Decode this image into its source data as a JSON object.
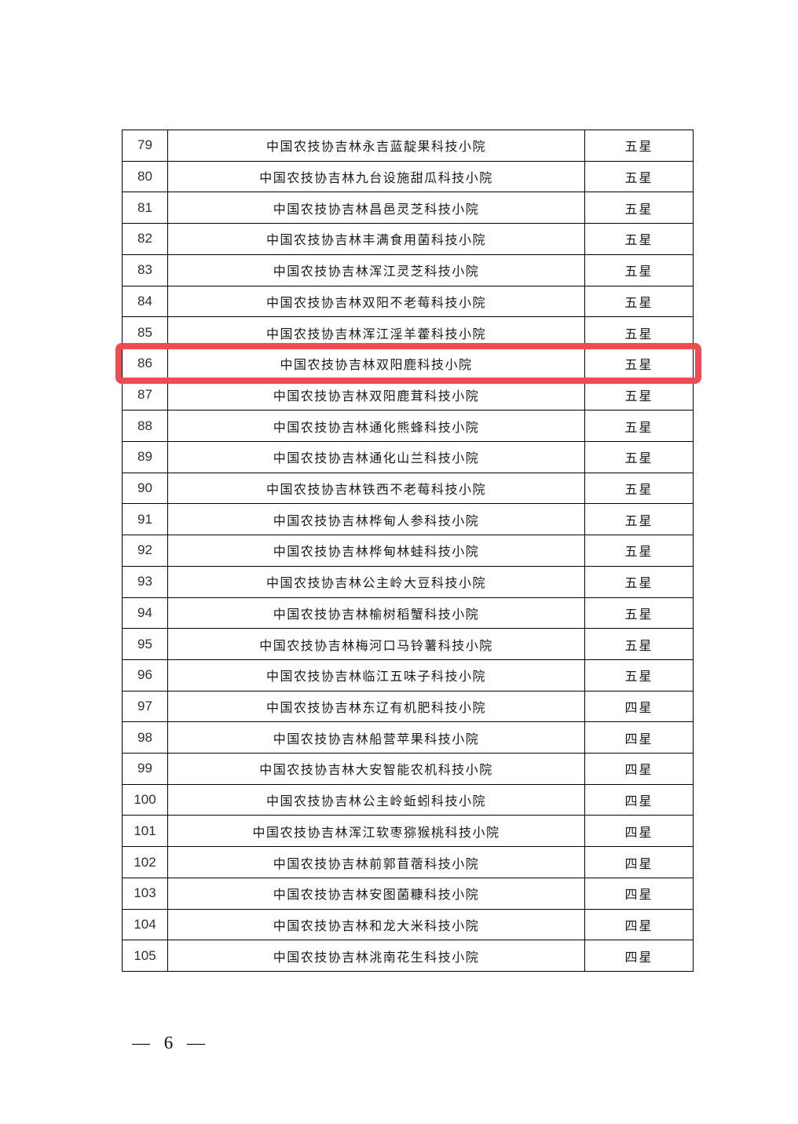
{
  "table": {
    "rows": [
      {
        "no": "79",
        "name": "中国农技协吉林永吉蓝靛果科技小院",
        "rating": "五星",
        "highlighted": false
      },
      {
        "no": "80",
        "name": "中国农技协吉林九台设施甜瓜科技小院",
        "rating": "五星",
        "highlighted": false
      },
      {
        "no": "81",
        "name": "中国农技协吉林昌邑灵芝科技小院",
        "rating": "五星",
        "highlighted": false
      },
      {
        "no": "82",
        "name": "中国农技协吉林丰满食用菌科技小院",
        "rating": "五星",
        "highlighted": false
      },
      {
        "no": "83",
        "name": "中国农技协吉林浑江灵芝科技小院",
        "rating": "五星",
        "highlighted": false
      },
      {
        "no": "84",
        "name": "中国农技协吉林双阳不老莓科技小院",
        "rating": "五星",
        "highlighted": false
      },
      {
        "no": "85",
        "name": "中国农技协吉林浑江淫羊藿科技小院",
        "rating": "五星",
        "highlighted": false
      },
      {
        "no": "86",
        "name": "中国农技协吉林双阳鹿科技小院",
        "rating": "五星",
        "highlighted": true
      },
      {
        "no": "87",
        "name": "中国农技协吉林双阳鹿茸科技小院",
        "rating": "五星",
        "highlighted": false
      },
      {
        "no": "88",
        "name": "中国农技协吉林通化熊蜂科技小院",
        "rating": "五星",
        "highlighted": false
      },
      {
        "no": "89",
        "name": "中国农技协吉林通化山兰科技小院",
        "rating": "五星",
        "highlighted": false
      },
      {
        "no": "90",
        "name": "中国农技协吉林铁西不老莓科技小院",
        "rating": "五星",
        "highlighted": false
      },
      {
        "no": "91",
        "name": "中国农技协吉林桦甸人参科技小院",
        "rating": "五星",
        "highlighted": false
      },
      {
        "no": "92",
        "name": "中国农技协吉林桦甸林蛙科技小院",
        "rating": "五星",
        "highlighted": false
      },
      {
        "no": "93",
        "name": "中国农技协吉林公主岭大豆科技小院",
        "rating": "五星",
        "highlighted": false
      },
      {
        "no": "94",
        "name": "中国农技协吉林榆树稻蟹科技小院",
        "rating": "五星",
        "highlighted": false
      },
      {
        "no": "95",
        "name": "中国农技协吉林梅河口马铃薯科技小院",
        "rating": "五星",
        "highlighted": false
      },
      {
        "no": "96",
        "name": "中国农技协吉林临江五味子科技小院",
        "rating": "五星",
        "highlighted": false
      },
      {
        "no": "97",
        "name": "中国农技协吉林东辽有机肥科技小院",
        "rating": "四星",
        "highlighted": false
      },
      {
        "no": "98",
        "name": "中国农技协吉林船营苹果科技小院",
        "rating": "四星",
        "highlighted": false
      },
      {
        "no": "99",
        "name": "中国农技协吉林大安智能农机科技小院",
        "rating": "四星",
        "highlighted": false
      },
      {
        "no": "100",
        "name": "中国农技协吉林公主岭蚯蚓科技小院",
        "rating": "四星",
        "highlighted": false
      },
      {
        "no": "101",
        "name": "中国农技协吉林浑江软枣猕猴桃科技小院",
        "rating": "四星",
        "highlighted": false
      },
      {
        "no": "102",
        "name": "中国农技协吉林前郭苜蓿科技小院",
        "rating": "四星",
        "highlighted": false
      },
      {
        "no": "103",
        "name": "中国农技协吉林安图菌糠科技小院",
        "rating": "四星",
        "highlighted": false
      },
      {
        "no": "104",
        "name": "中国农技协吉林和龙大米科技小院",
        "rating": "四星",
        "highlighted": false
      },
      {
        "no": "105",
        "name": "中国农技协吉林洮南花生科技小院",
        "rating": "四星",
        "highlighted": false
      }
    ]
  },
  "highlight": {
    "color": "#ee4c50"
  },
  "footer": {
    "page_label": "— 6 —"
  }
}
